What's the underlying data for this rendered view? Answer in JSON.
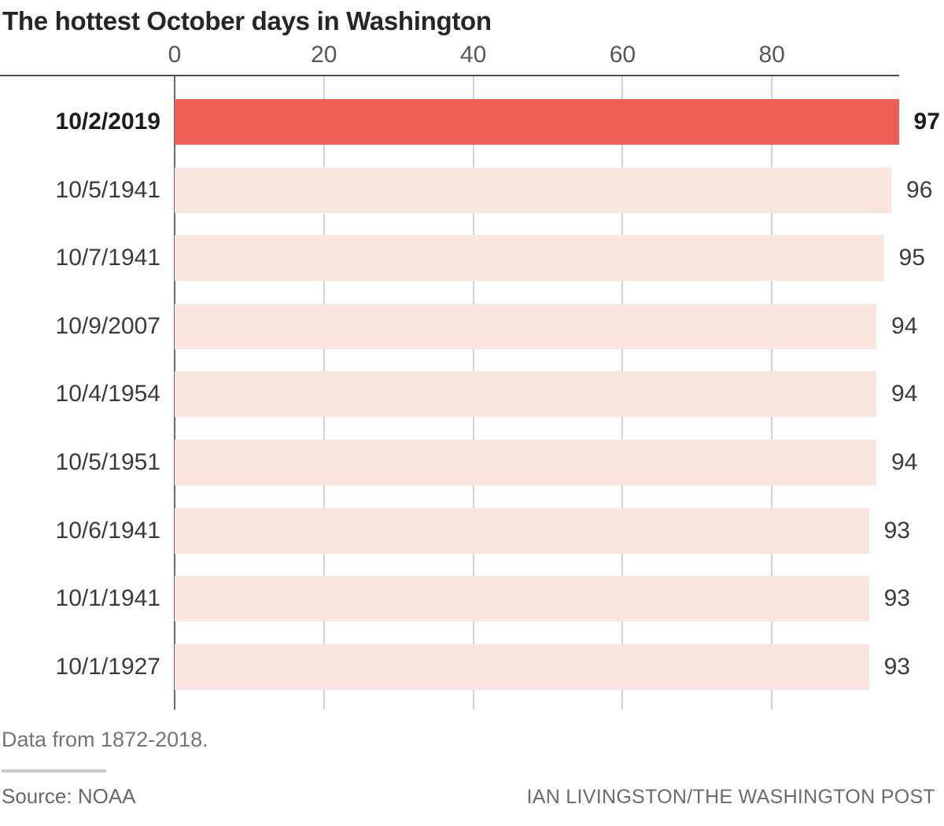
{
  "title": "The hottest October days in Washington",
  "chart_data": {
    "type": "bar",
    "orientation": "horizontal",
    "title": "The hottest October days in Washington",
    "categories": [
      "10/2/2019",
      "10/5/1941",
      "10/7/1941",
      "10/9/2007",
      "10/4/1954",
      "10/5/1951",
      "10/6/1941",
      "10/1/1941",
      "10/1/1927"
    ],
    "values": [
      97,
      96,
      95,
      94,
      94,
      94,
      93,
      93,
      93
    ],
    "value_labels": [
      "97",
      "96",
      "95",
      "94",
      "94",
      "94",
      "93",
      "93",
      "93"
    ],
    "highlight_index": 0,
    "x_ticks": [
      0,
      20,
      40,
      60,
      80
    ],
    "x_tick_labels": [
      "0",
      "20",
      "40",
      "60",
      "80"
    ],
    "xlim": [
      0,
      97
    ],
    "xlabel": "",
    "ylabel": "",
    "legend": "none",
    "grid": "vertical-gridlines",
    "axis_position": "top",
    "bar_color_highlight": "#ed5e55",
    "bar_color_default": "#fbe6df"
  },
  "footer": {
    "note": "Data from 1872-2018.",
    "source": "Source: NOAA",
    "credit": "IAN LIVINGSTON/THE WASHINGTON POST"
  },
  "colors": {
    "highlight_bar": "#ed5e55",
    "default_bar": "#fbe6df",
    "axis_line": "#4d4d4d",
    "gridline": "#d2d2d2",
    "zero_line": "#6b6b6b",
    "title_text": "#262626",
    "label_text": "#3b3b3b",
    "highlight_text": "#1c1c1c",
    "tick_text": "#575757",
    "footer_text": "#757575"
  }
}
